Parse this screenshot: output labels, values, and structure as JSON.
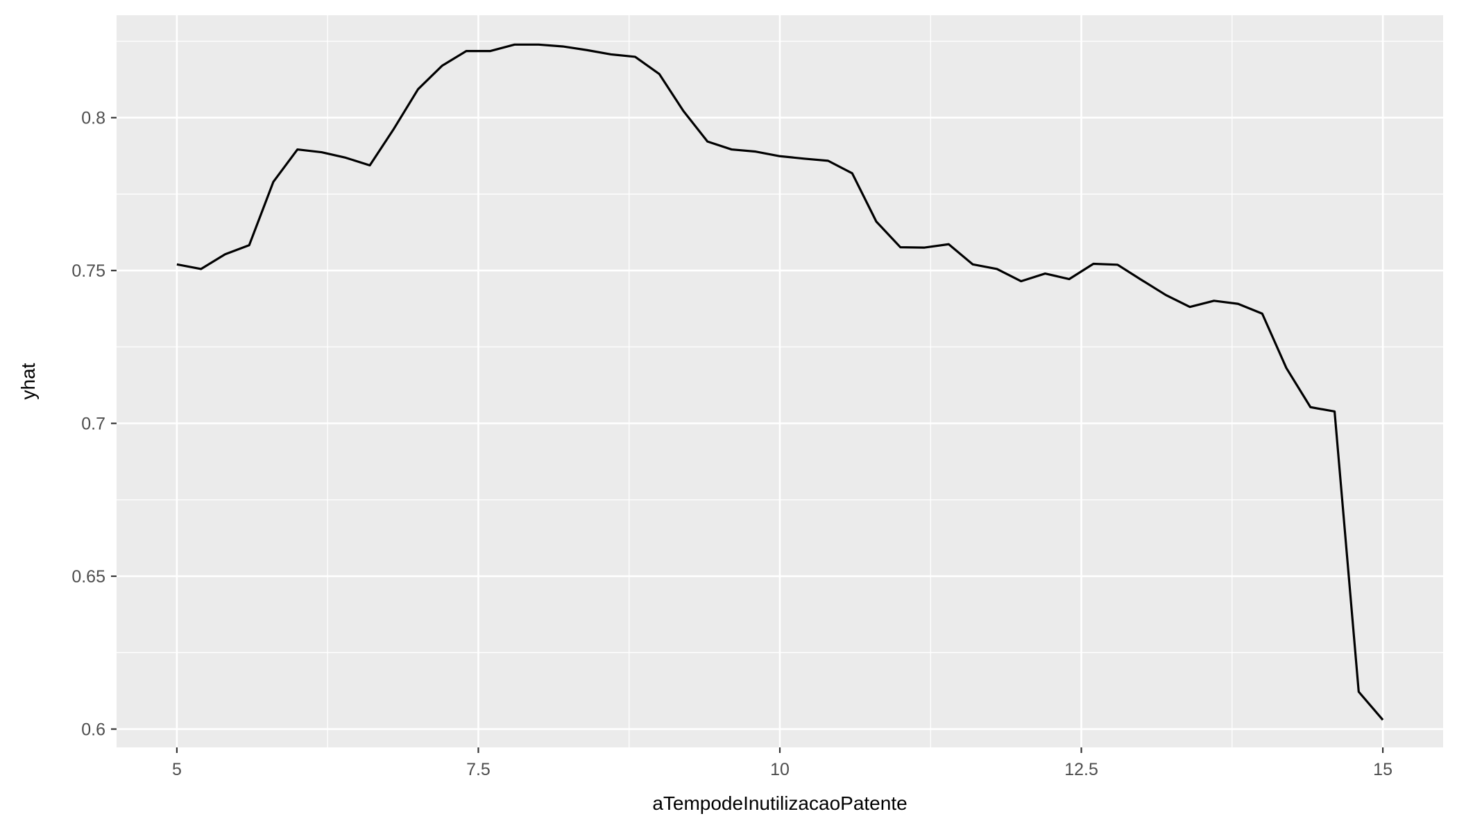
{
  "chart_data": {
    "type": "line",
    "title": "",
    "xlabel": "aTempodeInutilizacaoPatente",
    "ylabel": "yhat",
    "xlim": [
      4.5,
      15.5
    ],
    "ylim": [
      0.594,
      0.8335
    ],
    "x_ticks": [
      5,
      7.5,
      10,
      12.5,
      15
    ],
    "x_tick_labels": [
      "5",
      "7.5",
      "10",
      "12.5",
      "15"
    ],
    "x_minor_ticks": [
      6.25,
      8.75,
      11.25,
      13.75
    ],
    "y_ticks": [
      0.6,
      0.65,
      0.7,
      0.75,
      0.8
    ],
    "y_tick_labels": [
      "0.6",
      "0.65",
      "0.7",
      "0.75",
      "0.8"
    ],
    "y_minor_ticks": [
      0.625,
      0.675,
      0.725,
      0.775,
      0.825
    ],
    "grid": true,
    "colors": {
      "panel": "#ebebeb",
      "grid": "#ffffff",
      "line": "#000000"
    },
    "series": [
      {
        "x": [
          5.0,
          5.2,
          5.4,
          5.6,
          5.8,
          6.0,
          6.2,
          6.4,
          6.6,
          6.8,
          7.0,
          7.2,
          7.4,
          7.6,
          7.8,
          8.0,
          8.2,
          8.4,
          8.6,
          8.8,
          9.0,
          9.2,
          9.4,
          9.6,
          9.8,
          10.0,
          10.2,
          10.4,
          10.6,
          10.8,
          11.0,
          11.2,
          11.4,
          11.6,
          11.8,
          12.0,
          12.2,
          12.4,
          12.6,
          12.8,
          13.0,
          13.2,
          13.4,
          13.6,
          13.8,
          14.0,
          14.2,
          14.4,
          14.6,
          14.8,
          15.0
        ],
        "values": [
          0.752,
          0.7505,
          0.7553,
          0.7583,
          0.779,
          0.7896,
          0.7887,
          0.7869,
          0.7844,
          0.7964,
          0.8093,
          0.817,
          0.8218,
          0.8218,
          0.8239,
          0.8239,
          0.8233,
          0.8221,
          0.8207,
          0.8199,
          0.8143,
          0.8022,
          0.7922,
          0.7896,
          0.7889,
          0.7874,
          0.7866,
          0.7859,
          0.7818,
          0.766,
          0.7576,
          0.7575,
          0.7586,
          0.752,
          0.7505,
          0.7465,
          0.749,
          0.7472,
          0.7522,
          0.7519,
          0.7469,
          0.742,
          0.7381,
          0.7401,
          0.7391,
          0.7359,
          0.7181,
          0.7053,
          0.7039,
          0.6122,
          0.603
        ]
      }
    ]
  }
}
